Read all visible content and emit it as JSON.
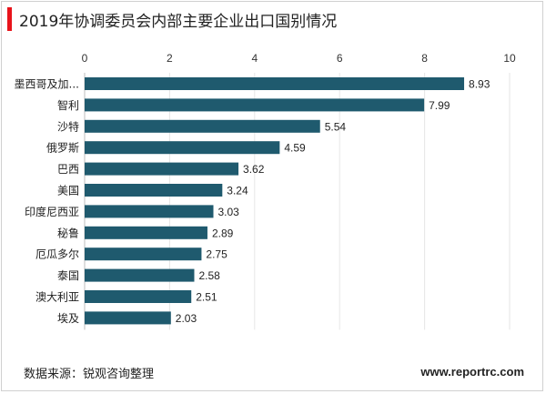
{
  "chart_data": {
    "type": "bar",
    "orientation": "horizontal",
    "title": "2019年协调委员会内部主要企业出口国别情况",
    "categories": [
      "墨西哥及加...",
      "智利",
      "沙特",
      "俄罗斯",
      "巴西",
      "美国",
      "印度尼西亚",
      "秘鲁",
      "厄瓜多尔",
      "泰国",
      "澳大利亚",
      "埃及"
    ],
    "values": [
      8.93,
      7.99,
      5.54,
      4.59,
      3.62,
      3.24,
      3.03,
      2.89,
      2.75,
      2.58,
      2.51,
      2.03
    ],
    "value_labels": [
      "8.93",
      "7.99",
      "5.54",
      "4.59",
      "3.62",
      "3.24",
      "3.03",
      "2.89",
      "2.75",
      "2.58",
      "2.51",
      "2.03"
    ],
    "xlim": [
      0,
      10
    ],
    "xticks": [
      "0",
      "2",
      "4",
      "6",
      "8",
      "10"
    ],
    "axis_position": "top",
    "grid": true,
    "legend": "none",
    "bar_color": "#1f5a6e"
  },
  "footer": {
    "source": "数据来源：锐观咨询整理",
    "brand": "www.reportrc.com"
  },
  "colors": {
    "accent": "#e8141b"
  }
}
